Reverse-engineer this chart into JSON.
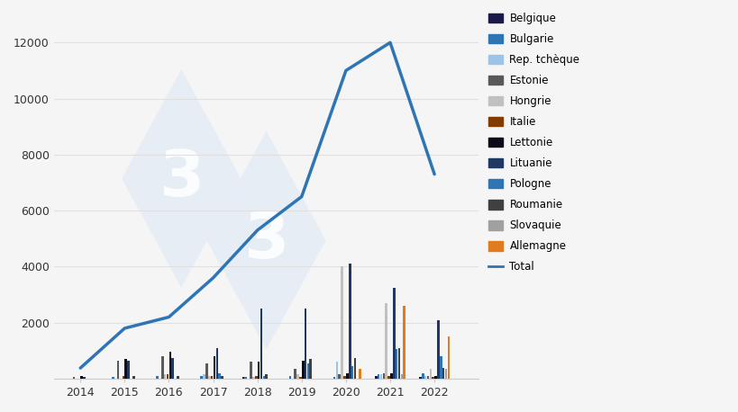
{
  "years": [
    2014,
    2015,
    2016,
    2017,
    2018,
    2019,
    2020,
    2021,
    2022
  ],
  "total_line": [
    380,
    1800,
    2200,
    3600,
    5300,
    6500,
    11000,
    12000,
    7300
  ],
  "countries": [
    "Belgique",
    "Bulgarie",
    "Rep. tchèque",
    "Estonie",
    "Hongrie",
    "Italie",
    "Lettonie",
    "Lituanie",
    "Pologne",
    "Roumanie",
    "Slovaquie",
    "Allemagne"
  ],
  "colors": {
    "Belgique": "#1a1a4a",
    "Bulgarie": "#2e75b6",
    "Rep. tchèque": "#9dc3e6",
    "Estonie": "#595959",
    "Hongrie": "#c0c0c0",
    "Italie": "#833c00",
    "Lettonie": "#0a0a1a",
    "Lituanie": "#1f3864",
    "Pologne": "#2e75b6",
    "Roumanie": "#404040",
    "Slovaquie": "#a0a0a0",
    "Allemagne": "#e07b20"
  },
  "data": {
    "Belgique": [
      0,
      0,
      0,
      0,
      50,
      0,
      0,
      100,
      50
    ],
    "Bulgarie": [
      0,
      50,
      100,
      100,
      50,
      100,
      50,
      150,
      200
    ],
    "Rep. tchèque": [
      0,
      0,
      0,
      150,
      0,
      0,
      600,
      150,
      100
    ],
    "Estonie": [
      50,
      650,
      800,
      550,
      600,
      350,
      150,
      200,
      80
    ],
    "Hongrie": [
      0,
      0,
      150,
      100,
      50,
      150,
      4000,
      2700,
      350
    ],
    "Italie": [
      0,
      100,
      150,
      100,
      100,
      50,
      100,
      100,
      50
    ],
    "Lettonie": [
      100,
      700,
      950,
      800,
      600,
      650,
      200,
      200,
      100
    ],
    "Lituanie": [
      50,
      650,
      750,
      1100,
      2500,
      2500,
      4100,
      3250,
      2100
    ],
    "Pologne": [
      0,
      0,
      0,
      200,
      100,
      550,
      450,
      1050,
      800
    ],
    "Roumanie": [
      0,
      100,
      100,
      100,
      150,
      700,
      750,
      1100,
      400
    ],
    "Slovaquie": [
      0,
      0,
      0,
      0,
      0,
      0,
      0,
      150,
      350
    ],
    "Allemagne": [
      0,
      0,
      0,
      0,
      0,
      0,
      350,
      2600,
      1500
    ]
  },
  "ylim": [
    0,
    13000
  ],
  "yticks": [
    0,
    2000,
    4000,
    6000,
    8000,
    10000,
    12000
  ],
  "total_color": "#2e75b6",
  "background_color": "#f5f5f5",
  "grid_color": "#e0e0e0",
  "watermark_color": "#dce9f5"
}
